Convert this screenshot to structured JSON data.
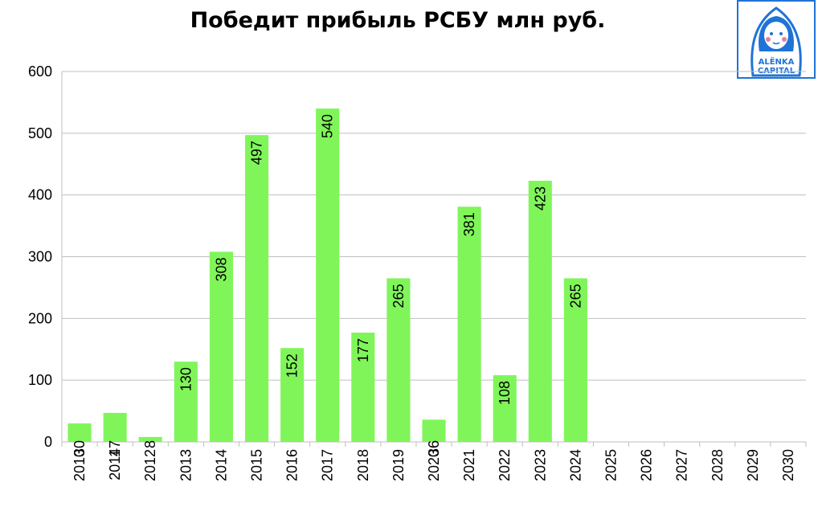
{
  "chart_data": {
    "type": "bar",
    "title": "Победит прибыль РСБУ млн руб.",
    "xlabel": "",
    "ylabel": "",
    "ylim": [
      0,
      600
    ],
    "yticks": [
      0,
      100,
      200,
      300,
      400,
      500,
      600
    ],
    "grid": true,
    "bar_color": "#80f55a",
    "categories": [
      "2010",
      "2011",
      "2012",
      "2013",
      "2014",
      "2015",
      "2016",
      "2017",
      "2018",
      "2019",
      "2020",
      "2021",
      "2022",
      "2023",
      "2024",
      "2025",
      "2026",
      "2027",
      "2028",
      "2029",
      "2030"
    ],
    "values": [
      30,
      47,
      8,
      130,
      308,
      497,
      152,
      540,
      177,
      265,
      36,
      381,
      108,
      423,
      265,
      null,
      null,
      null,
      null,
      null,
      null
    ],
    "data_labels": [
      "30",
      "47",
      "8",
      "130",
      "308",
      "497",
      "152",
      "540",
      "177",
      "265",
      "36",
      "381",
      "108",
      "423",
      "265",
      "",
      "",
      "",
      "",
      "",
      ""
    ]
  },
  "logo": {
    "name": "alenka-capital-logo",
    "text_line1": "ALËNKA",
    "text_line2": "CAPITAL",
    "color": "#1f73d6"
  }
}
